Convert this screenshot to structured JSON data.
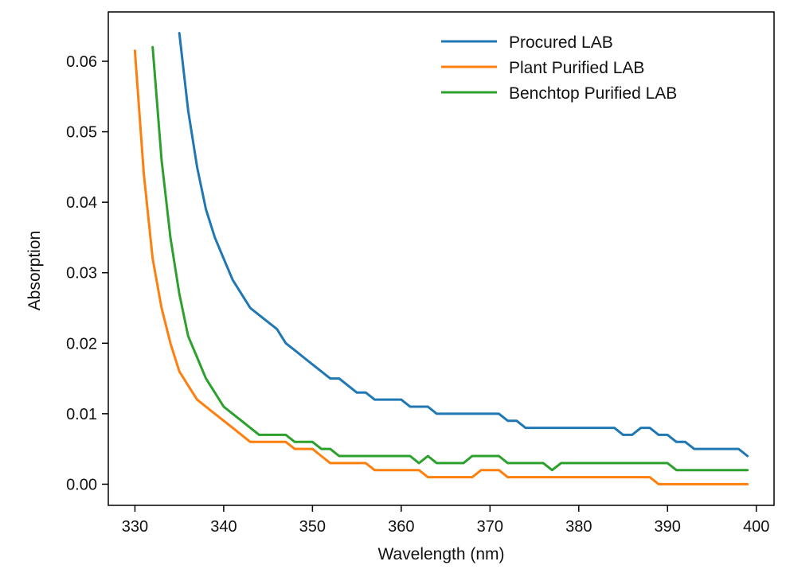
{
  "chart_data": {
    "type": "line",
    "title": "",
    "xlabel": "Wavelength (nm)",
    "ylabel": "Absorption",
    "xlim": [
      327,
      402
    ],
    "ylim": [
      -0.003,
      0.067
    ],
    "xticks": [
      330,
      340,
      350,
      360,
      370,
      380,
      390,
      400
    ],
    "yticks": [
      0.0,
      0.01,
      0.02,
      0.03,
      0.04,
      0.05,
      0.06
    ],
    "xtick_labels": [
      "330",
      "340",
      "350",
      "360",
      "370",
      "380",
      "390",
      "400"
    ],
    "ytick_labels": [
      "0.00",
      "0.01",
      "0.02",
      "0.03",
      "0.04",
      "0.05",
      "0.06"
    ],
    "grid": false,
    "legend_position": "top-right",
    "series": [
      {
        "name": "Procured LAB",
        "color": "#1f77b4",
        "x": [
          335,
          336,
          337,
          338,
          339,
          340,
          341,
          342,
          343,
          344,
          345,
          346,
          347,
          348,
          349,
          350,
          351,
          352,
          353,
          354,
          355,
          356,
          357,
          358,
          359,
          360,
          361,
          362,
          363,
          364,
          365,
          366,
          367,
          368,
          369,
          370,
          371,
          372,
          373,
          374,
          375,
          376,
          377,
          378,
          379,
          380,
          381,
          382,
          383,
          384,
          385,
          386,
          387,
          388,
          389,
          390,
          391,
          392,
          393,
          394,
          395,
          396,
          397,
          398,
          399
        ],
        "y": [
          0.064,
          0.053,
          0.045,
          0.039,
          0.035,
          0.032,
          0.029,
          0.027,
          0.025,
          0.024,
          0.023,
          0.022,
          0.02,
          0.019,
          0.018,
          0.017,
          0.016,
          0.015,
          0.015,
          0.014,
          0.013,
          0.013,
          0.012,
          0.012,
          0.012,
          0.012,
          0.011,
          0.011,
          0.011,
          0.01,
          0.01,
          0.01,
          0.01,
          0.01,
          0.01,
          0.01,
          0.01,
          0.009,
          0.009,
          0.008,
          0.008,
          0.008,
          0.008,
          0.008,
          0.008,
          0.008,
          0.008,
          0.008,
          0.008,
          0.008,
          0.007,
          0.007,
          0.008,
          0.008,
          0.007,
          0.007,
          0.006,
          0.006,
          0.005,
          0.005,
          0.005,
          0.005,
          0.005,
          0.005,
          0.004
        ]
      },
      {
        "name": "Plant Purified LAB",
        "color": "#ff7f0e",
        "x": [
          330,
          331,
          332,
          333,
          334,
          335,
          336,
          337,
          338,
          339,
          340,
          341,
          342,
          343,
          344,
          345,
          346,
          347,
          348,
          349,
          350,
          351,
          352,
          353,
          354,
          355,
          356,
          357,
          358,
          359,
          360,
          361,
          362,
          363,
          364,
          365,
          366,
          367,
          368,
          369,
          370,
          371,
          372,
          373,
          374,
          375,
          376,
          377,
          378,
          379,
          380,
          381,
          382,
          383,
          384,
          385,
          386,
          387,
          388,
          389,
          390,
          391,
          392,
          393,
          394,
          395,
          396,
          397,
          398,
          399
        ],
        "y": [
          0.0615,
          0.044,
          0.032,
          0.025,
          0.02,
          0.016,
          0.014,
          0.012,
          0.011,
          0.01,
          0.009,
          0.008,
          0.007,
          0.006,
          0.006,
          0.006,
          0.006,
          0.006,
          0.005,
          0.005,
          0.005,
          0.004,
          0.003,
          0.003,
          0.003,
          0.003,
          0.003,
          0.002,
          0.002,
          0.002,
          0.002,
          0.002,
          0.002,
          0.001,
          0.001,
          0.001,
          0.001,
          0.001,
          0.001,
          0.002,
          0.002,
          0.002,
          0.001,
          0.001,
          0.001,
          0.001,
          0.001,
          0.001,
          0.001,
          0.001,
          0.001,
          0.001,
          0.001,
          0.001,
          0.001,
          0.001,
          0.001,
          0.001,
          0.001,
          0.0,
          0.0,
          0.0,
          0.0,
          0.0,
          0.0,
          0.0,
          0.0,
          0.0,
          0.0,
          0.0
        ]
      },
      {
        "name": "Benchtop Purified LAB",
        "color": "#2ca02c",
        "x": [
          332,
          333,
          334,
          335,
          336,
          337,
          338,
          339,
          340,
          341,
          342,
          343,
          344,
          345,
          346,
          347,
          348,
          349,
          350,
          351,
          352,
          353,
          354,
          355,
          356,
          357,
          358,
          359,
          360,
          361,
          362,
          363,
          364,
          365,
          366,
          367,
          368,
          369,
          370,
          371,
          372,
          373,
          374,
          375,
          376,
          377,
          378,
          379,
          380,
          381,
          382,
          383,
          384,
          385,
          386,
          387,
          388,
          389,
          390,
          391,
          392,
          393,
          394,
          395,
          396,
          397,
          398,
          399
        ],
        "y": [
          0.062,
          0.046,
          0.035,
          0.027,
          0.021,
          0.018,
          0.015,
          0.013,
          0.011,
          0.01,
          0.009,
          0.008,
          0.007,
          0.007,
          0.007,
          0.007,
          0.006,
          0.006,
          0.006,
          0.005,
          0.005,
          0.004,
          0.004,
          0.004,
          0.004,
          0.004,
          0.004,
          0.004,
          0.004,
          0.004,
          0.003,
          0.004,
          0.003,
          0.003,
          0.003,
          0.003,
          0.004,
          0.004,
          0.004,
          0.004,
          0.003,
          0.003,
          0.003,
          0.003,
          0.003,
          0.002,
          0.003,
          0.003,
          0.003,
          0.003,
          0.003,
          0.003,
          0.003,
          0.003,
          0.003,
          0.003,
          0.003,
          0.003,
          0.003,
          0.002,
          0.002,
          0.002,
          0.002,
          0.002,
          0.002,
          0.002,
          0.002,
          0.002
        ]
      }
    ]
  }
}
